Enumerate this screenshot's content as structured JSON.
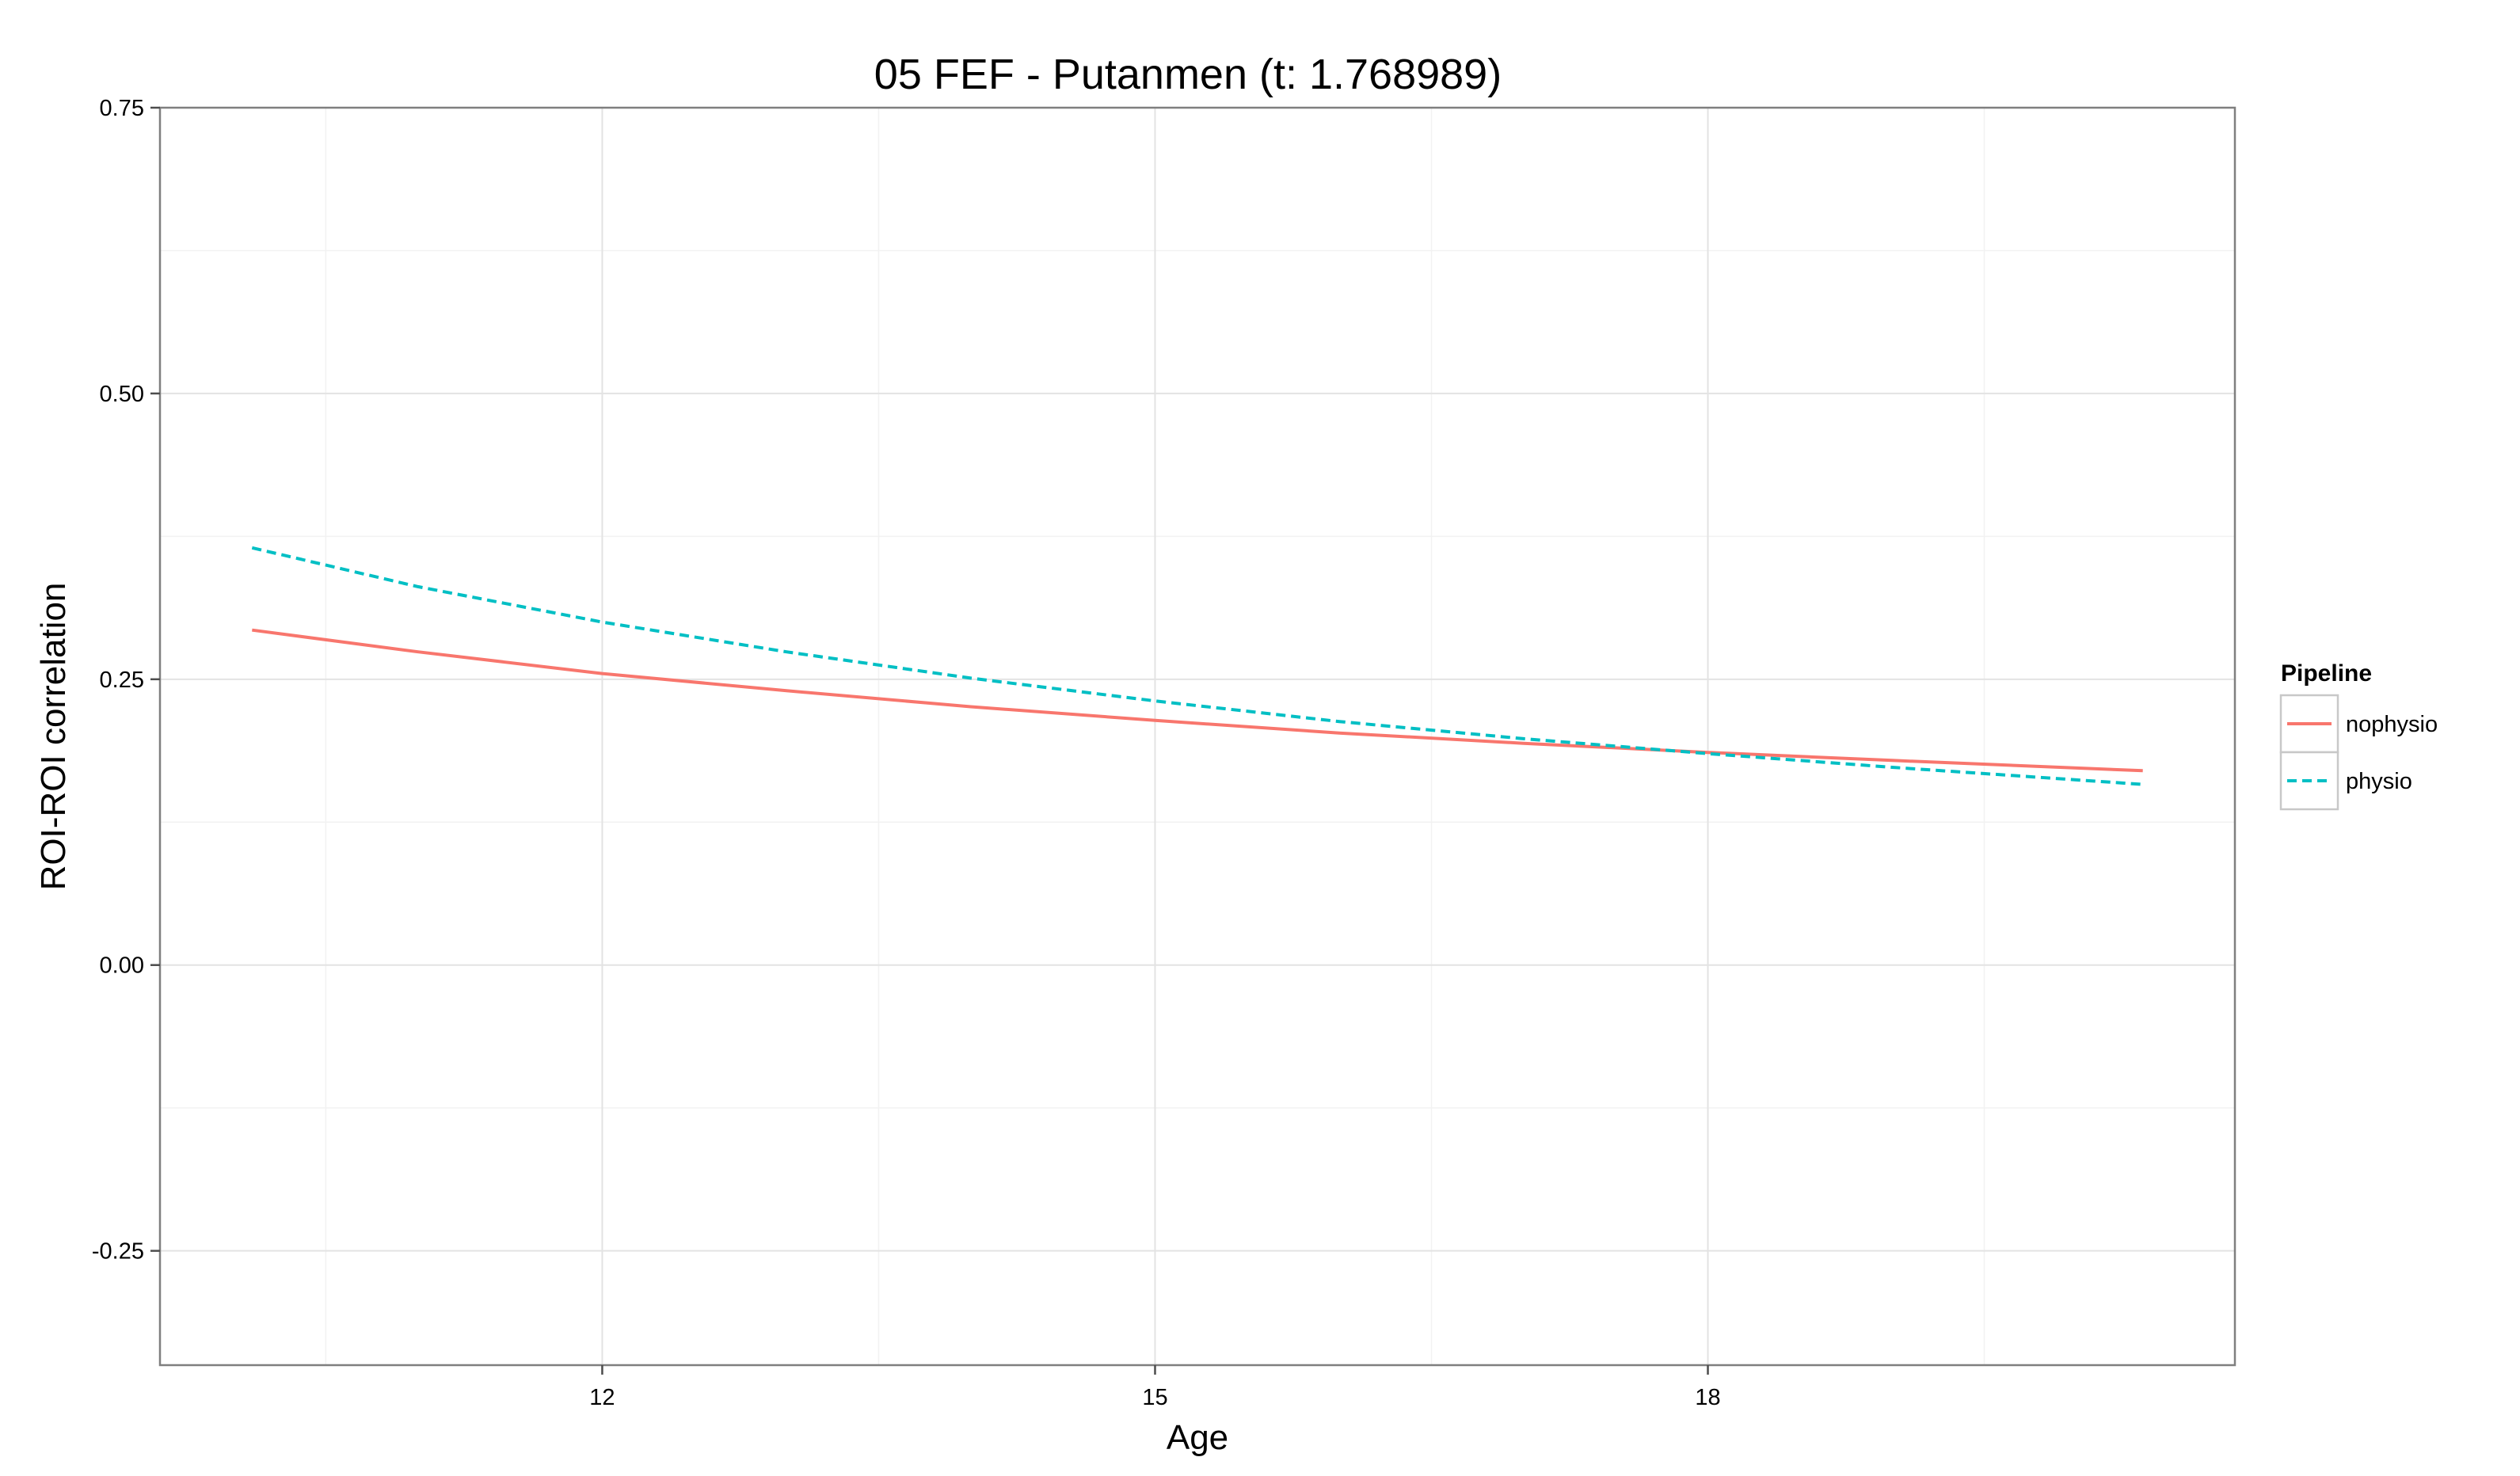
{
  "chart_data": {
    "type": "line",
    "title": "05 FEF - Putanmen (t: 1.768989)",
    "xlabel": "Age",
    "ylabel": "ROI-ROI correlation",
    "xlim": [
      9.6,
      20.86
    ],
    "ylim": [
      -0.35,
      0.75
    ],
    "x_ticks": [
      12,
      15,
      18
    ],
    "x_tick_labels": [
      "12",
      "15",
      "18"
    ],
    "y_ticks": [
      -0.25,
      0.0,
      0.25,
      0.5,
      0.75
    ],
    "y_tick_labels": [
      "-0.25",
      "0.00",
      "0.25",
      "0.50",
      "0.75"
    ],
    "grid": true,
    "legend": {
      "title": "Pipeline",
      "position": "right"
    },
    "series": [
      {
        "name": "nophysio",
        "color": "#F8766D",
        "linestyle": "solid",
        "x": [
          10.1,
          11.0,
          12.0,
          13.0,
          14.0,
          15.0,
          16.0,
          17.0,
          18.0,
          19.0,
          20.36
        ],
        "y": [
          0.293,
          0.274,
          0.255,
          0.24,
          0.226,
          0.214,
          0.203,
          0.194,
          0.186,
          0.179,
          0.17
        ]
      },
      {
        "name": "physio",
        "color": "#00BFC4",
        "linestyle": "dashed",
        "x": [
          10.1,
          11.0,
          12.0,
          13.0,
          14.0,
          15.0,
          16.0,
          17.0,
          18.0,
          19.0,
          20.36
        ],
        "y": [
          0.365,
          0.331,
          0.3,
          0.274,
          0.251,
          0.231,
          0.213,
          0.198,
          0.185,
          0.173,
          0.158
        ]
      }
    ]
  }
}
